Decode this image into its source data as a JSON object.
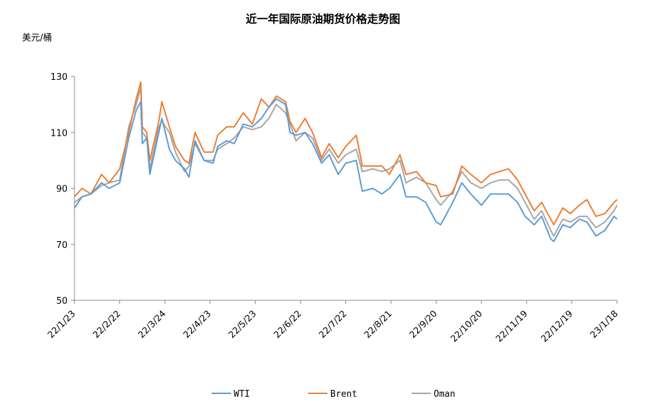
{
  "chart_data": {
    "type": "line",
    "title": "近一年国际原油期货价格走势图",
    "ylabel": "美元/桶",
    "xlabel": "",
    "ylim": [
      50,
      130
    ],
    "yticks": [
      "50",
      "70",
      "90",
      "110",
      "130"
    ],
    "xlim_days": [
      0,
      360
    ],
    "xticks": [
      "22/1/23",
      "22/2/22",
      "22/3/24",
      "22/4/23",
      "22/5/23",
      "22/6/22",
      "22/7/22",
      "22/8/21",
      "22/9/20",
      "22/10/20",
      "22/11/19",
      "22/12/19",
      "23/1/18"
    ],
    "legend_position": "bottom",
    "grid": false,
    "x": [
      0,
      5,
      11,
      18,
      23,
      30,
      36,
      41,
      44,
      45,
      48,
      50,
      56,
      58,
      63,
      67,
      73,
      76,
      80,
      86,
      92,
      95,
      101,
      106,
      112,
      118,
      124,
      129,
      134,
      140,
      143,
      147,
      153,
      158,
      164,
      169,
      175,
      180,
      187,
      191,
      198,
      204,
      209,
      216,
      220,
      227,
      233,
      240,
      243,
      251,
      257,
      263,
      270,
      276,
      282,
      288,
      294,
      299,
      305,
      310,
      316,
      318,
      324,
      329,
      335,
      340,
      346,
      352,
      358,
      360
    ],
    "series": [
      {
        "name": "WTI",
        "color": "#5b9bd5",
        "values": [
          83,
          87,
          88,
          92,
          90,
          92,
          108,
          118,
          121,
          106,
          108,
          95,
          110,
          115,
          104,
          100,
          97,
          94,
          107,
          100,
          99,
          105,
          107,
          106,
          113,
          112,
          115,
          119,
          122,
          120,
          110,
          109,
          110,
          106,
          99,
          102,
          95,
          99,
          100,
          89,
          90,
          88,
          90,
          95,
          87,
          87,
          85,
          78,
          77,
          85,
          92,
          88,
          84,
          88,
          88,
          88,
          85,
          80,
          77,
          80,
          72,
          71,
          77,
          76,
          79,
          78,
          73,
          75,
          80,
          79
        ]
      },
      {
        "name": "Brent",
        "color": "#ed7d31",
        "values": [
          87,
          90,
          88,
          95,
          92,
          97,
          110,
          122,
          128,
          112,
          110,
          100,
          114,
          121,
          112,
          105,
          100,
          99,
          110,
          103,
          103,
          109,
          112,
          112,
          117,
          113,
          122,
          119,
          123,
          121,
          114,
          110,
          115,
          110,
          101,
          106,
          101,
          105,
          109,
          98,
          98,
          98,
          95,
          102,
          95,
          96,
          92,
          91,
          87,
          88,
          98,
          95,
          92,
          95,
          96,
          97,
          93,
          88,
          82,
          85,
          79,
          77,
          83,
          81,
          84,
          86,
          80,
          81,
          85,
          86
        ]
      },
      {
        "name": "Oman",
        "color": "#a5a5a5",
        "values": [
          85,
          87,
          88,
          91,
          92,
          93,
          112,
          120,
          126,
          110,
          108,
          97,
          112,
          114,
          110,
          103,
          96,
          98,
          106,
          100,
          100,
          104,
          106,
          108,
          112,
          111,
          112,
          115,
          120,
          117,
          113,
          107,
          110,
          108,
          100,
          104,
          99,
          102,
          104,
          96,
          97,
          96,
          97,
          100,
          92,
          94,
          92,
          86,
          84,
          89,
          96,
          92,
          90,
          92,
          93,
          93,
          90,
          85,
          79,
          82,
          75,
          73,
          79,
          78,
          80,
          80,
          76,
          78,
          82,
          84
        ]
      }
    ]
  }
}
